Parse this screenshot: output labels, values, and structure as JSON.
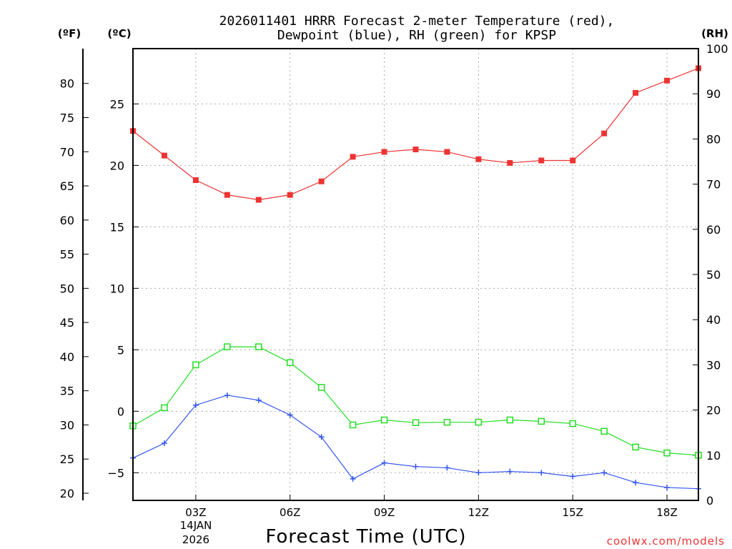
{
  "chart_data": {
    "type": "line",
    "title_line1": "2026011401 HRRR Forecast 2-meter Temperature (red),",
    "title_line2": "Dewpoint (blue), RH (green) for KPSP",
    "xlabel": "Forecast Time (UTC)",
    "date_label_day": "14JAN",
    "date_label_year": "2026",
    "watermark": "coolwx.com/models",
    "unit_f": "(ºF)",
    "unit_c": "(ºC)",
    "unit_rh": "(RH)",
    "x": [
      1,
      2,
      3,
      4,
      5,
      6,
      7,
      8,
      9,
      10,
      11,
      12,
      13,
      14,
      15,
      16,
      17,
      18,
      19
    ],
    "xlim": [
      1,
      19
    ],
    "x_ticks": [
      {
        "x": 3,
        "label": "03Z"
      },
      {
        "x": 6,
        "label": "06Z"
      },
      {
        "x": 9,
        "label": "09Z"
      },
      {
        "x": 12,
        "label": "12Z"
      },
      {
        "x": 15,
        "label": "15Z"
      },
      {
        "x": 18,
        "label": "18Z"
      }
    ],
    "ylim_c": [
      -7.25,
      29.5
    ],
    "yticks_c": [
      -5,
      0,
      5,
      10,
      15,
      20,
      25
    ],
    "yticks_f": [
      20,
      25,
      30,
      35,
      40,
      45,
      50,
      55,
      60,
      65,
      70,
      75,
      80
    ],
    "ylim_rh": [
      0,
      100
    ],
    "yticks_rh": [
      0,
      10,
      20,
      30,
      40,
      50,
      60,
      70,
      80,
      90,
      100
    ],
    "series": [
      {
        "name": "Temperature",
        "axis": "c",
        "color": "#ee3333",
        "marker": "filled-square",
        "values": [
          22.8,
          20.8,
          18.8,
          17.6,
          17.2,
          17.6,
          18.7,
          20.7,
          21.1,
          21.3,
          21.1,
          20.5,
          20.2,
          20.4,
          20.4,
          22.6,
          25.9,
          26.9,
          27.9
        ]
      },
      {
        "name": "Dewpoint",
        "axis": "c",
        "color": "#3355ee",
        "marker": "plus",
        "values": [
          -3.8,
          -2.6,
          0.5,
          1.3,
          0.9,
          -0.3,
          -2.1,
          -5.5,
          -4.2,
          -4.5,
          -4.6,
          -5.0,
          -4.9,
          -5.0,
          -5.3,
          -5.0,
          -5.8,
          -6.2,
          -6.3
        ]
      },
      {
        "name": "RH",
        "axis": "rh",
        "color": "#22dd22",
        "marker": "open-square",
        "values": [
          16.5,
          20.5,
          30.0,
          34.0,
          34.0,
          30.5,
          25.0,
          16.7,
          17.8,
          17.2,
          17.3,
          17.3,
          17.8,
          17.5,
          17.0,
          15.3,
          11.8,
          10.5,
          10.0
        ]
      }
    ],
    "grid": true
  }
}
